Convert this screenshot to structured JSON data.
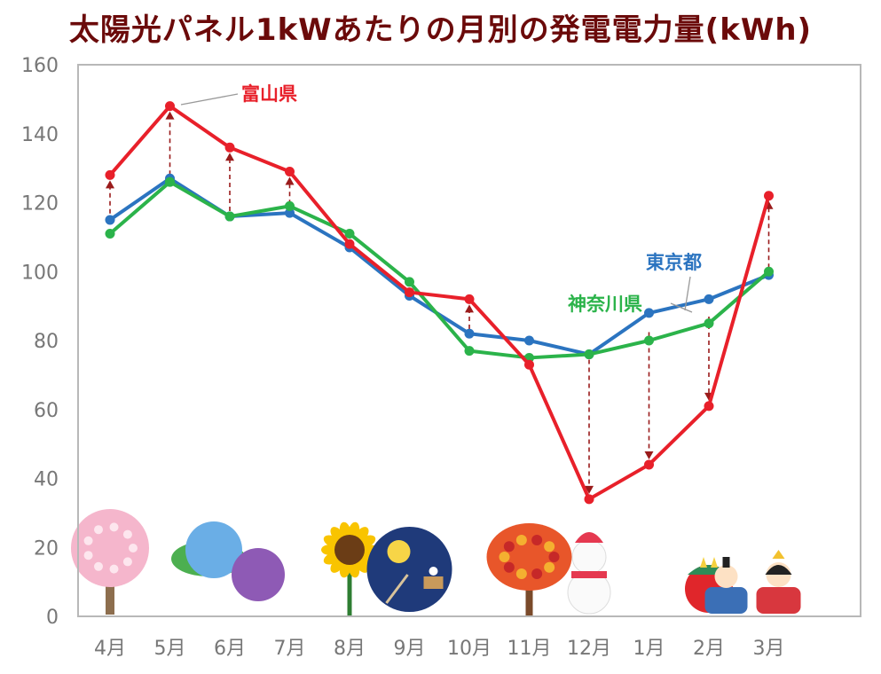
{
  "chart_data": {
    "type": "line",
    "title": "太陽光パネル1kWあたりの月別の発電電力量(kWh)",
    "xlabel": "",
    "ylabel": "",
    "ylim": [
      0,
      160
    ],
    "yticks": [
      0,
      20,
      40,
      60,
      80,
      100,
      120,
      140,
      160
    ],
    "categories": [
      "4月",
      "5月",
      "6月",
      "7月",
      "8月",
      "9月",
      "10月",
      "11月",
      "12月",
      "1月",
      "2月",
      "3月"
    ],
    "series": [
      {
        "name": "富山県",
        "color": "#e8202a",
        "values": [
          128,
          148,
          136,
          129,
          108,
          94,
          92,
          73,
          34,
          44,
          61,
          122
        ]
      },
      {
        "name": "東京都",
        "color": "#2b74c0",
        "values": [
          115,
          127,
          116,
          117,
          107,
          93,
          82,
          80,
          76,
          88,
          92,
          99
        ]
      },
      {
        "name": "神奈川県",
        "color": "#2bb34a",
        "values": [
          111,
          126,
          116,
          119,
          111,
          97,
          77,
          75,
          76,
          80,
          85,
          100
        ]
      }
    ],
    "legend_labels": [
      {
        "series": "富山県",
        "text": "富山県"
      },
      {
        "series": "東京都",
        "text": "東京都"
      },
      {
        "series": "神奈川県",
        "text": "神奈川県"
      }
    ],
    "annotation_arrows_style": "dashed arrows from 東京都/神奈川県 to 富山県",
    "grid": false
  },
  "decorations": [
    {
      "month": "4月",
      "icon": "cherry-blossom-tree-icon"
    },
    {
      "month": "6月",
      "icon": "hydrangea-icon"
    },
    {
      "month": "8月",
      "icon": "sunflower-icon"
    },
    {
      "month": "9月",
      "icon": "moon-viewing-icon"
    },
    {
      "month": "11月",
      "icon": "autumn-maple-tree-icon"
    },
    {
      "month": "12月",
      "icon": "snowman-icon"
    },
    {
      "month": "2月",
      "icon": "oni-demon-icon"
    },
    {
      "month": "3月",
      "icon": "hina-dolls-icon"
    }
  ]
}
